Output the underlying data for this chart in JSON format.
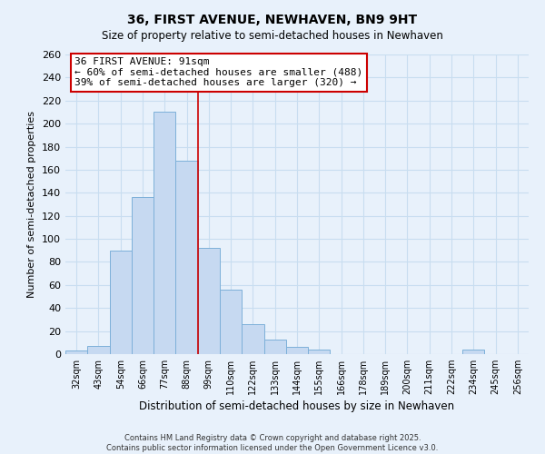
{
  "title": "36, FIRST AVENUE, NEWHAVEN, BN9 9HT",
  "subtitle": "Size of property relative to semi-detached houses in Newhaven",
  "xlabel": "Distribution of semi-detached houses by size in Newhaven",
  "ylabel": "Number of semi-detached properties",
  "bin_labels": [
    "32sqm",
    "43sqm",
    "54sqm",
    "66sqm",
    "77sqm",
    "88sqm",
    "99sqm",
    "110sqm",
    "122sqm",
    "133sqm",
    "144sqm",
    "155sqm",
    "166sqm",
    "178sqm",
    "189sqm",
    "200sqm",
    "211sqm",
    "222sqm",
    "234sqm",
    "245sqm",
    "256sqm"
  ],
  "bar_heights": [
    3,
    7,
    90,
    136,
    210,
    168,
    92,
    56,
    26,
    13,
    6,
    4,
    0,
    0,
    0,
    0,
    0,
    0,
    4,
    0,
    0
  ],
  "bar_color": "#c6d9f1",
  "bar_edge_color": "#7db0d9",
  "grid_color": "#c8ddf0",
  "background_color": "#e8f1fb",
  "vline_x": 5.5,
  "vline_color": "#cc0000",
  "annotation_text": "36 FIRST AVENUE: 91sqm\n← 60% of semi-detached houses are smaller (488)\n39% of semi-detached houses are larger (320) →",
  "annotation_box_color": "#ffffff",
  "annotation_box_edge": "#cc0000",
  "ylim": [
    0,
    260
  ],
  "yticks": [
    0,
    20,
    40,
    60,
    80,
    100,
    120,
    140,
    160,
    180,
    200,
    220,
    240,
    260
  ],
  "footer1": "Contains HM Land Registry data © Crown copyright and database right 2025.",
  "footer2": "Contains public sector information licensed under the Open Government Licence v3.0."
}
